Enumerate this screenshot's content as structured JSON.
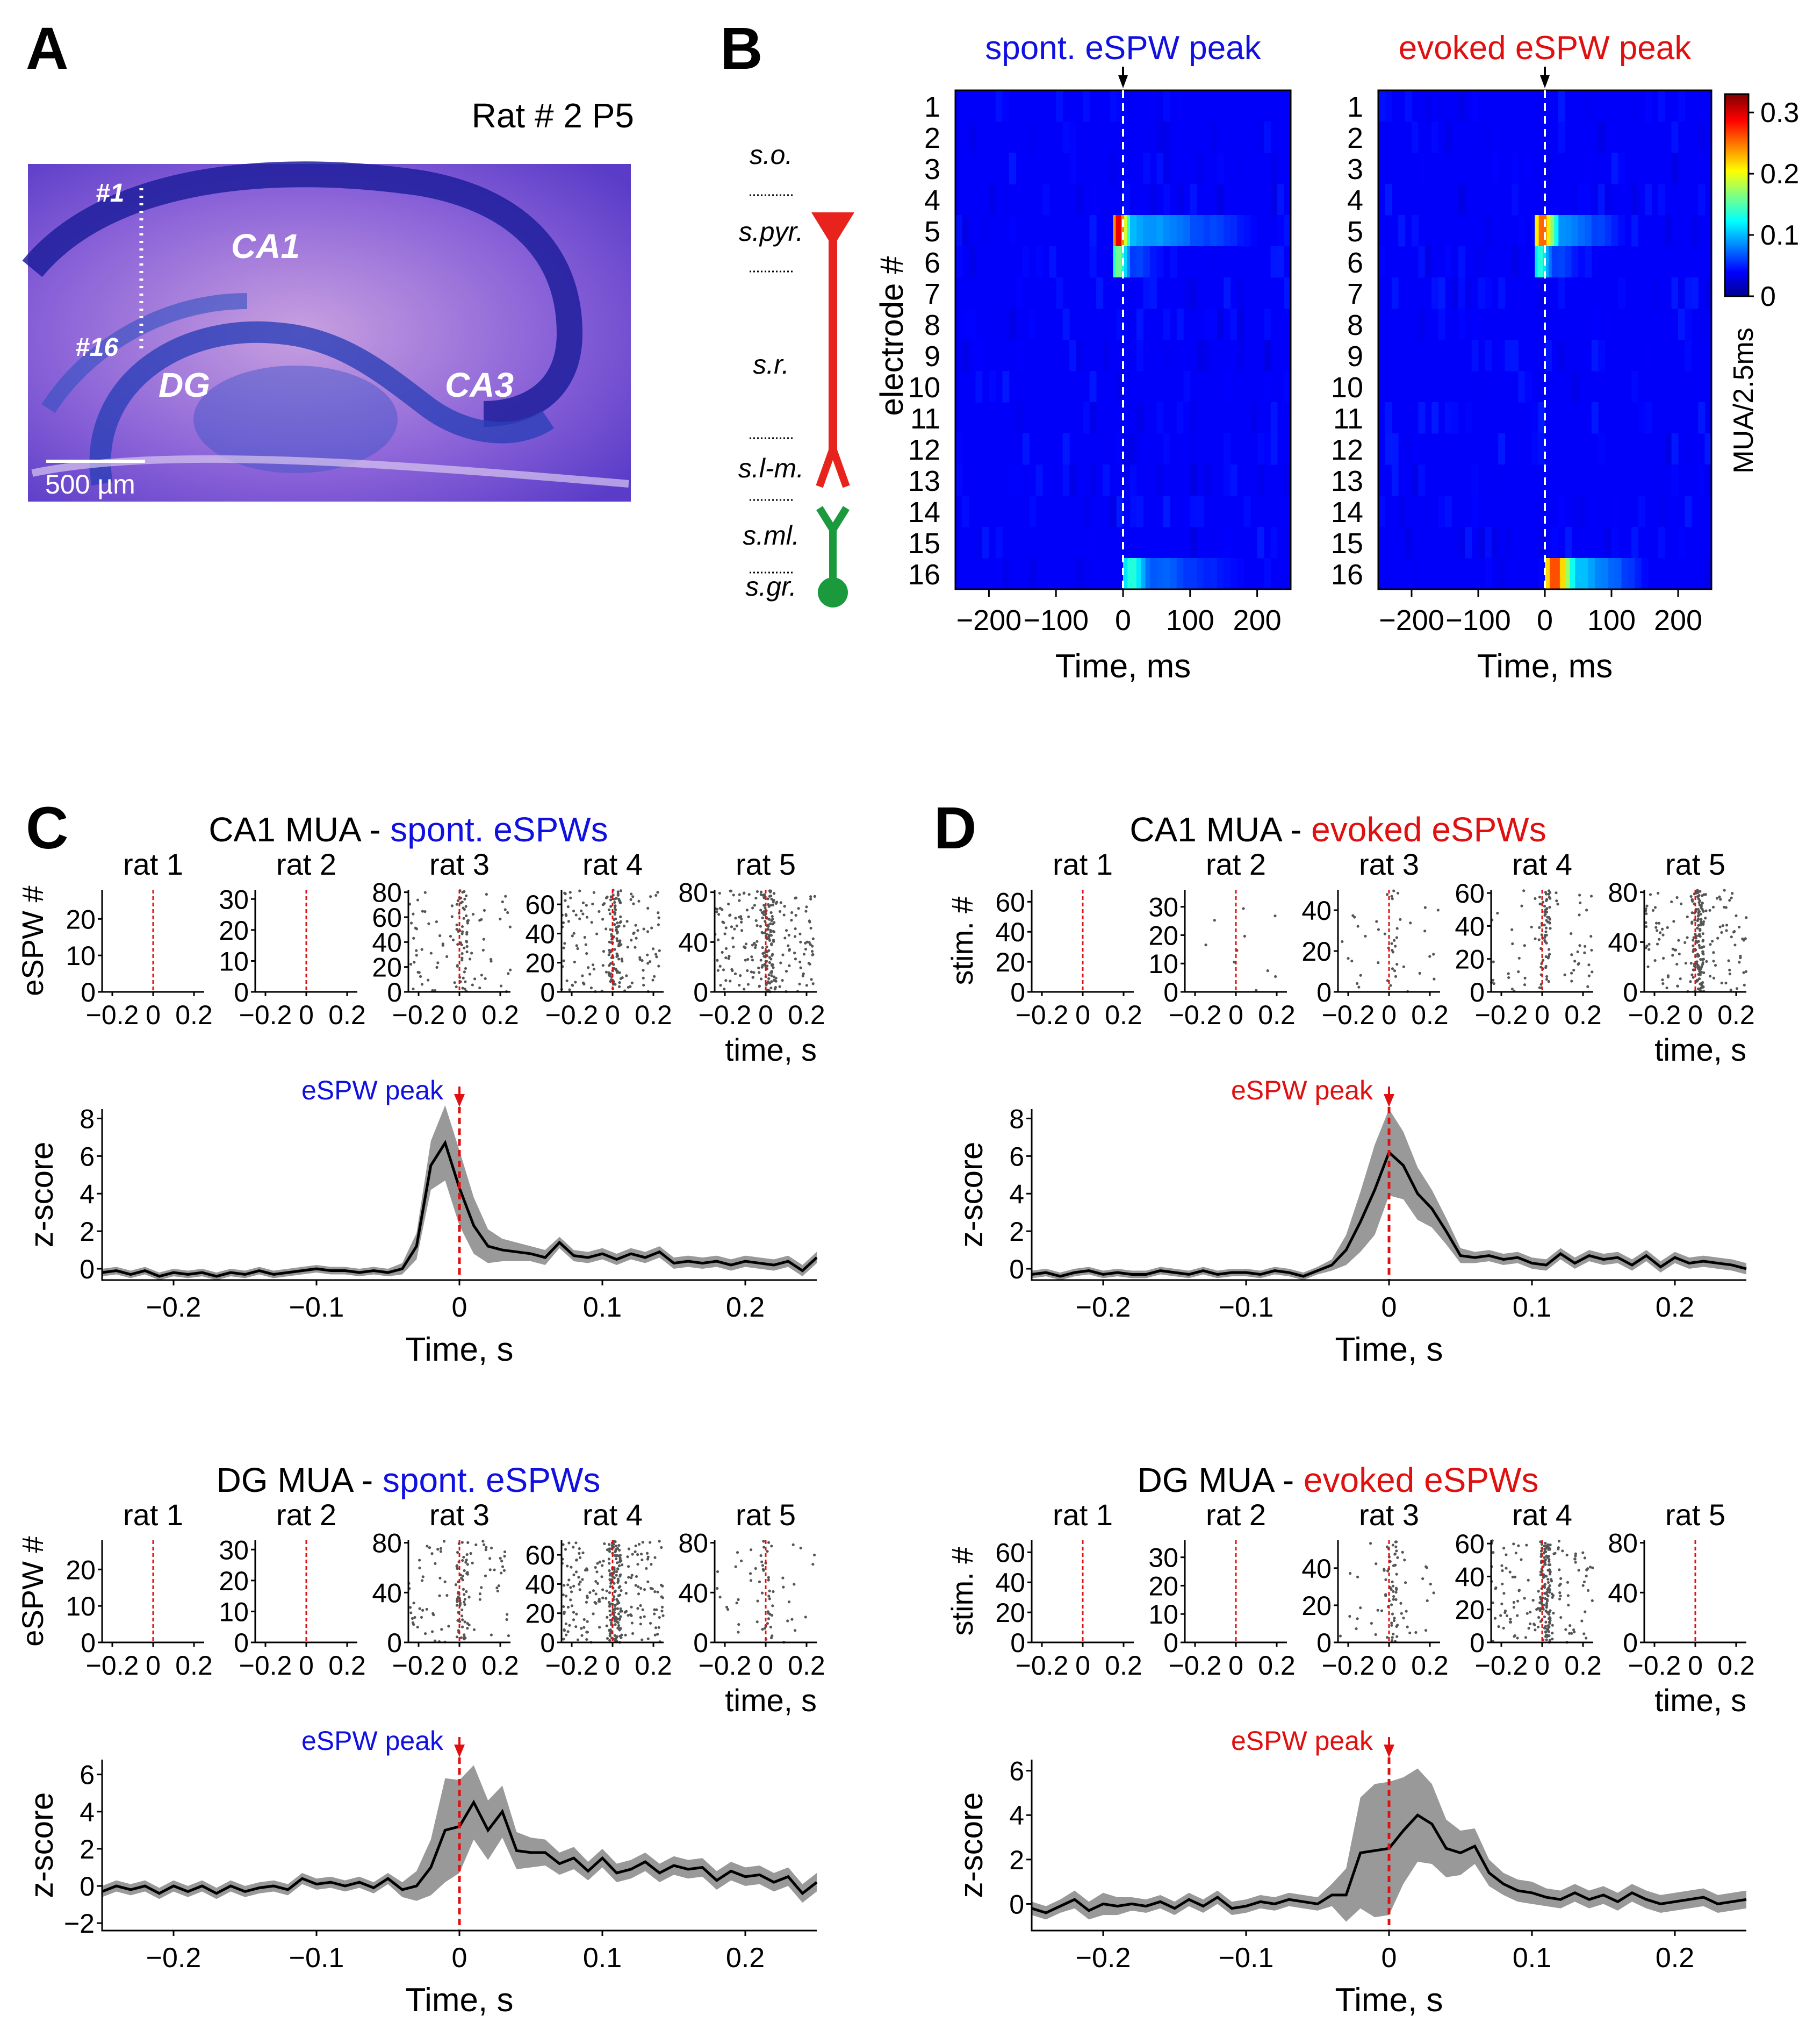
{
  "panel_letters": {
    "a": "A",
    "b": "B",
    "c": "C",
    "d": "D"
  },
  "colors": {
    "blue": "#1010e0",
    "red": "#e01010",
    "neuron_red": "#e8231e",
    "neuron_green": "#1a9a3c",
    "raster_dot": "#555555",
    "band": "#999999",
    "trace": "#000000"
  },
  "panel_a": {
    "title": "Rat # 2 P5",
    "electrode_top": "#1",
    "electrode_bottom": "#16",
    "regions": [
      "CA1",
      "DG",
      "CA3"
    ],
    "scalebar": "500 µm"
  },
  "panel_b": {
    "layers": [
      "s.o.",
      "s.pyr.",
      "s.r.",
      "s.l-m.",
      "s.ml.",
      "s.gr."
    ],
    "ylabel": "electrode #",
    "electrodes": [
      "1",
      "2",
      "3",
      "4",
      "5",
      "6",
      "7",
      "8",
      "9",
      "10",
      "11",
      "12",
      "13",
      "14",
      "15",
      "16"
    ],
    "heatmaps": [
      {
        "title": "spont. eSPW peak",
        "title_color": "blue",
        "xlabel": "Time, ms",
        "xticks": [
          "−200",
          "−100",
          "0",
          "100",
          "200"
        ],
        "xlim": [
          -250,
          250
        ],
        "hot_rows": {
          "5": {
            "start": -15,
            "end": 10,
            "peak": 0.32,
            "tail": 0.07,
            "tail_end": 200
          },
          "6": {
            "start": -15,
            "end": 10,
            "peak": 0.15,
            "tail": 0.03,
            "tail_end": 60
          },
          "16": {
            "start": 0,
            "end": 40,
            "peak": 0.12,
            "tail": 0.04,
            "tail_end": 180
          }
        }
      },
      {
        "title": "evoked eSPW peak",
        "title_color": "red",
        "xlabel": "Time, ms",
        "xticks": [
          "−200",
          "−100",
          "0",
          "100",
          "200"
        ],
        "xlim": [
          -250,
          250
        ],
        "hot_rows": {
          "5": {
            "start": -15,
            "end": 20,
            "peak": 0.27,
            "tail": 0.06,
            "tail_end": 120
          },
          "6": {
            "start": -15,
            "end": 10,
            "peak": 0.12,
            "tail": 0.03,
            "tail_end": 60
          },
          "16": {
            "start": 0,
            "end": 45,
            "peak": 0.28,
            "tail": 0.08,
            "tail_end": 150
          }
        }
      }
    ],
    "colorbar": {
      "label": "MUA/2.5ms",
      "ticks": [
        "0.3",
        "0.2",
        "0.1",
        "0"
      ],
      "range": [
        0,
        0.33
      ]
    }
  },
  "panel_c": {
    "blocks": [
      {
        "title_black": "CA1 MUA - ",
        "title_colored": "spont. eSPWs",
        "title_color": "blue"
      },
      {
        "title_black": "DG MUA - ",
        "title_colored": "spont. eSPWs",
        "title_color": "blue"
      }
    ]
  },
  "panel_d": {
    "blocks": [
      {
        "title_black": "CA1 MUA - ",
        "title_colored": "evoked eSPWs",
        "title_color": "red"
      },
      {
        "title_black": "DG MUA - ",
        "title_colored": "evoked eSPWs",
        "title_color": "red"
      }
    ]
  },
  "raster_common": {
    "rat_labels": [
      "rat 1",
      "rat 2",
      "rat 3",
      "rat 4",
      "rat 5"
    ],
    "xticks": [
      "−0.2",
      "0",
      "0.2"
    ],
    "time_label": "time, s",
    "ylabel_spont": "eSPW #",
    "ylabel_evoked": "stim. #"
  },
  "raster_yticks": {
    "c_top": [
      [
        "0",
        "10",
        "20"
      ],
      [
        "0",
        "10",
        "20",
        "30"
      ],
      [
        "0",
        "20",
        "40",
        "60",
        "80"
      ],
      [
        "0",
        "20",
        "40",
        "60"
      ],
      [
        "0",
        "40",
        "80"
      ]
    ],
    "c_bot": [
      [
        "0",
        "10",
        "20"
      ],
      [
        "0",
        "10",
        "20",
        "30"
      ],
      [
        "0",
        "40",
        "80"
      ],
      [
        "0",
        "20",
        "40",
        "60"
      ],
      [
        "0",
        "40",
        "80"
      ]
    ],
    "d_top": [
      [
        "0",
        "20",
        "40",
        "60"
      ],
      [
        "0",
        "10",
        "20",
        "30"
      ],
      [
        "0",
        "20",
        "40"
      ],
      [
        "0",
        "20",
        "40",
        "60"
      ],
      [
        "0",
        "40",
        "80"
      ]
    ],
    "d_bot": [
      [
        "0",
        "20",
        "40",
        "60"
      ],
      [
        "0",
        "10",
        "20",
        "30"
      ],
      [
        "0",
        "20",
        "40"
      ],
      [
        "0",
        "20",
        "40",
        "60"
      ],
      [
        "0",
        "40",
        "80"
      ]
    ]
  },
  "zscore_common": {
    "ylabel": "z-score",
    "xlabel": "Time, s",
    "xticks": [
      "−0.2",
      "−0.1",
      "0",
      "0.1",
      "0.2"
    ],
    "peak_label": "eSPW peak"
  },
  "chart_data": [
    {
      "id": "c_ca1",
      "type": "line",
      "xlabel": "Time, s",
      "ylabel": "z-score",
      "xlim": [
        -0.25,
        0.25
      ],
      "ylim": [
        -0.6,
        8.5
      ],
      "yticks": [
        "0",
        "2",
        "4",
        "6",
        "8"
      ],
      "x": [
        -0.25,
        -0.24,
        -0.23,
        -0.22,
        -0.21,
        -0.2,
        -0.19,
        -0.18,
        -0.17,
        -0.16,
        -0.15,
        -0.14,
        -0.13,
        -0.12,
        -0.11,
        -0.1,
        -0.09,
        -0.08,
        -0.07,
        -0.06,
        -0.05,
        -0.04,
        -0.03,
        -0.02,
        -0.01,
        0,
        0.01,
        0.02,
        0.03,
        0.04,
        0.05,
        0.06,
        0.07,
        0.08,
        0.09,
        0.1,
        0.11,
        0.12,
        0.13,
        0.14,
        0.15,
        0.16,
        0.17,
        0.18,
        0.19,
        0.2,
        0.21,
        0.22,
        0.23,
        0.24,
        0.25
      ],
      "mean": [
        -0.2,
        -0.1,
        -0.3,
        -0.1,
        -0.4,
        -0.2,
        -0.3,
        -0.2,
        -0.4,
        -0.2,
        -0.3,
        -0.1,
        -0.3,
        -0.2,
        -0.1,
        0.0,
        -0.1,
        -0.1,
        -0.2,
        -0.1,
        -0.2,
        0.0,
        1.2,
        5.5,
        6.7,
        4.3,
        2.3,
        1.2,
        1.0,
        0.9,
        0.8,
        0.6,
        1.4,
        0.7,
        0.6,
        0.8,
        0.5,
        0.8,
        0.6,
        0.9,
        0.3,
        0.4,
        0.3,
        0.4,
        0.2,
        0.4,
        0.3,
        0.2,
        0.4,
        -0.1,
        0.6
      ],
      "ci": [
        0.2,
        0.2,
        0.2,
        0.2,
        0.2,
        0.2,
        0.2,
        0.2,
        0.2,
        0.2,
        0.2,
        0.2,
        0.2,
        0.2,
        0.2,
        0.2,
        0.2,
        0.2,
        0.2,
        0.2,
        0.2,
        0.3,
        0.7,
        1.3,
        2.0,
        2.0,
        1.5,
        0.9,
        0.6,
        0.5,
        0.4,
        0.4,
        0.3,
        0.3,
        0.3,
        0.3,
        0.3,
        0.3,
        0.3,
        0.3,
        0.3,
        0.3,
        0.3,
        0.3,
        0.3,
        0.3,
        0.3,
        0.3,
        0.3,
        0.3,
        0.3
      ]
    },
    {
      "id": "c_dg",
      "type": "line",
      "xlabel": "Time, s",
      "ylabel": "z-score",
      "xlim": [
        -0.25,
        0.25
      ],
      "ylim": [
        -2.4,
        6.8
      ],
      "yticks": [
        "−2",
        "0",
        "2",
        "4",
        "6"
      ],
      "x": [
        -0.25,
        -0.24,
        -0.23,
        -0.22,
        -0.21,
        -0.2,
        -0.19,
        -0.18,
        -0.17,
        -0.16,
        -0.15,
        -0.14,
        -0.13,
        -0.12,
        -0.11,
        -0.1,
        -0.09,
        -0.08,
        -0.07,
        -0.06,
        -0.05,
        -0.04,
        -0.03,
        -0.02,
        -0.01,
        0,
        0.01,
        0.02,
        0.03,
        0.04,
        0.05,
        0.06,
        0.07,
        0.08,
        0.09,
        0.1,
        0.11,
        0.12,
        0.13,
        0.14,
        0.15,
        0.16,
        0.17,
        0.18,
        0.19,
        0.2,
        0.21,
        0.22,
        0.23,
        0.24,
        0.25
      ],
      "mean": [
        -0.3,
        0.0,
        -0.2,
        0.0,
        -0.4,
        0.0,
        -0.3,
        0.0,
        -0.4,
        0.0,
        -0.3,
        -0.1,
        0.0,
        -0.2,
        0.4,
        0.1,
        0.2,
        0.0,
        0.2,
        -0.1,
        0.4,
        -0.2,
        0.0,
        1.0,
        3.0,
        3.2,
        4.5,
        3.0,
        4.0,
        1.9,
        1.8,
        1.8,
        1.2,
        1.5,
        0.8,
        1.5,
        0.7,
        0.9,
        1.3,
        0.7,
        1.1,
        0.9,
        1.0,
        0.3,
        0.8,
        0.5,
        0.6,
        0.2,
        0.5,
        -0.4,
        0.2
      ],
      "ci": [
        0.3,
        0.3,
        0.3,
        0.3,
        0.3,
        0.3,
        0.3,
        0.3,
        0.3,
        0.3,
        0.3,
        0.3,
        0.3,
        0.3,
        0.3,
        0.3,
        0.3,
        0.3,
        0.3,
        0.3,
        0.3,
        0.4,
        0.8,
        1.5,
        2.8,
        2.5,
        2.0,
        1.6,
        1.4,
        1.0,
        0.8,
        0.7,
        0.6,
        0.6,
        0.5,
        0.5,
        0.5,
        0.5,
        0.5,
        0.5,
        0.5,
        0.5,
        0.5,
        0.5,
        0.5,
        0.5,
        0.5,
        0.5,
        0.5,
        0.5,
        0.5
      ]
    },
    {
      "id": "d_ca1",
      "type": "line",
      "xlabel": "Time, s",
      "ylabel": "z-score",
      "xlim": [
        -0.25,
        0.25
      ],
      "ylim": [
        -0.6,
        8.5
      ],
      "yticks": [
        "0",
        "2",
        "4",
        "6",
        "8"
      ],
      "x": [
        -0.25,
        -0.24,
        -0.23,
        -0.22,
        -0.21,
        -0.2,
        -0.19,
        -0.18,
        -0.17,
        -0.16,
        -0.15,
        -0.14,
        -0.13,
        -0.12,
        -0.11,
        -0.1,
        -0.09,
        -0.08,
        -0.07,
        -0.06,
        -0.05,
        -0.04,
        -0.03,
        -0.02,
        -0.01,
        0,
        0.01,
        0.02,
        0.03,
        0.04,
        0.05,
        0.06,
        0.07,
        0.08,
        0.09,
        0.1,
        0.11,
        0.12,
        0.13,
        0.14,
        0.15,
        0.16,
        0.17,
        0.18,
        0.19,
        0.2,
        0.21,
        0.22,
        0.23,
        0.24,
        0.25
      ],
      "mean": [
        -0.3,
        -0.2,
        -0.4,
        -0.2,
        -0.1,
        -0.3,
        -0.2,
        -0.3,
        -0.3,
        -0.1,
        -0.2,
        -0.3,
        -0.1,
        -0.3,
        -0.2,
        -0.2,
        -0.3,
        -0.1,
        -0.2,
        -0.4,
        -0.1,
        0.2,
        1.0,
        2.5,
        4.2,
        6.2,
        5.5,
        4.0,
        3.2,
        2.0,
        0.7,
        0.6,
        0.7,
        0.5,
        0.6,
        0.3,
        0.2,
        0.8,
        0.3,
        0.7,
        0.5,
        0.6,
        0.2,
        0.7,
        0.1,
        0.6,
        0.3,
        0.4,
        0.3,
        0.2,
        0.0
      ],
      "ci": [
        0.2,
        0.2,
        0.2,
        0.2,
        0.2,
        0.2,
        0.2,
        0.2,
        0.2,
        0.2,
        0.2,
        0.2,
        0.2,
        0.2,
        0.2,
        0.2,
        0.2,
        0.2,
        0.2,
        0.2,
        0.2,
        0.3,
        0.8,
        1.6,
        2.4,
        2.3,
        1.8,
        1.4,
        1.0,
        0.7,
        0.4,
        0.3,
        0.3,
        0.3,
        0.3,
        0.3,
        0.3,
        0.3,
        0.3,
        0.3,
        0.3,
        0.3,
        0.3,
        0.3,
        0.3,
        0.3,
        0.3,
        0.3,
        0.3,
        0.3,
        0.3
      ]
    },
    {
      "id": "d_dg",
      "type": "line",
      "xlabel": "Time, s",
      "ylabel": "z-score",
      "xlim": [
        -0.25,
        0.25
      ],
      "ylim": [
        -1.2,
        6.5
      ],
      "yticks": [
        "0",
        "2",
        "4",
        "6"
      ],
      "x": [
        -0.25,
        -0.24,
        -0.23,
        -0.22,
        -0.21,
        -0.2,
        -0.19,
        -0.18,
        -0.17,
        -0.16,
        -0.15,
        -0.14,
        -0.13,
        -0.12,
        -0.11,
        -0.1,
        -0.09,
        -0.08,
        -0.07,
        -0.06,
        -0.05,
        -0.04,
        -0.03,
        -0.02,
        -0.01,
        0,
        0.01,
        0.02,
        0.03,
        0.04,
        0.05,
        0.06,
        0.07,
        0.08,
        0.09,
        0.1,
        0.11,
        0.12,
        0.13,
        0.14,
        0.15,
        0.16,
        0.17,
        0.18,
        0.19,
        0.2,
        0.21,
        0.22,
        0.23,
        0.24,
        0.25
      ],
      "mean": [
        -0.2,
        -0.4,
        -0.1,
        0.2,
        -0.3,
        0.0,
        -0.1,
        0.0,
        -0.1,
        0.1,
        -0.2,
        0.2,
        -0.1,
        0.3,
        -0.2,
        -0.1,
        0.1,
        0.0,
        0.2,
        0.1,
        0.0,
        0.4,
        0.4,
        2.3,
        2.4,
        2.5,
        3.3,
        4.0,
        3.6,
        2.5,
        2.3,
        2.6,
        1.4,
        0.9,
        0.6,
        0.5,
        0.3,
        0.2,
        0.5,
        0.2,
        0.4,
        0.1,
        0.5,
        0.2,
        0.0,
        0.1,
        0.2,
        0.3,
        0.0,
        0.1,
        0.2
      ],
      "ci": [
        0.3,
        0.3,
        0.3,
        0.4,
        0.4,
        0.5,
        0.4,
        0.3,
        0.3,
        0.3,
        0.3,
        0.3,
        0.3,
        0.3,
        0.3,
        0.3,
        0.3,
        0.3,
        0.3,
        0.3,
        0.3,
        0.5,
        1.2,
        2.5,
        3.0,
        3.0,
        2.4,
        2.1,
        1.8,
        1.3,
        1.0,
        0.8,
        0.6,
        0.5,
        0.5,
        0.5,
        0.4,
        0.4,
        0.4,
        0.4,
        0.4,
        0.4,
        0.4,
        0.4,
        0.4,
        0.4,
        0.4,
        0.4,
        0.4,
        0.4,
        0.4
      ]
    }
  ]
}
